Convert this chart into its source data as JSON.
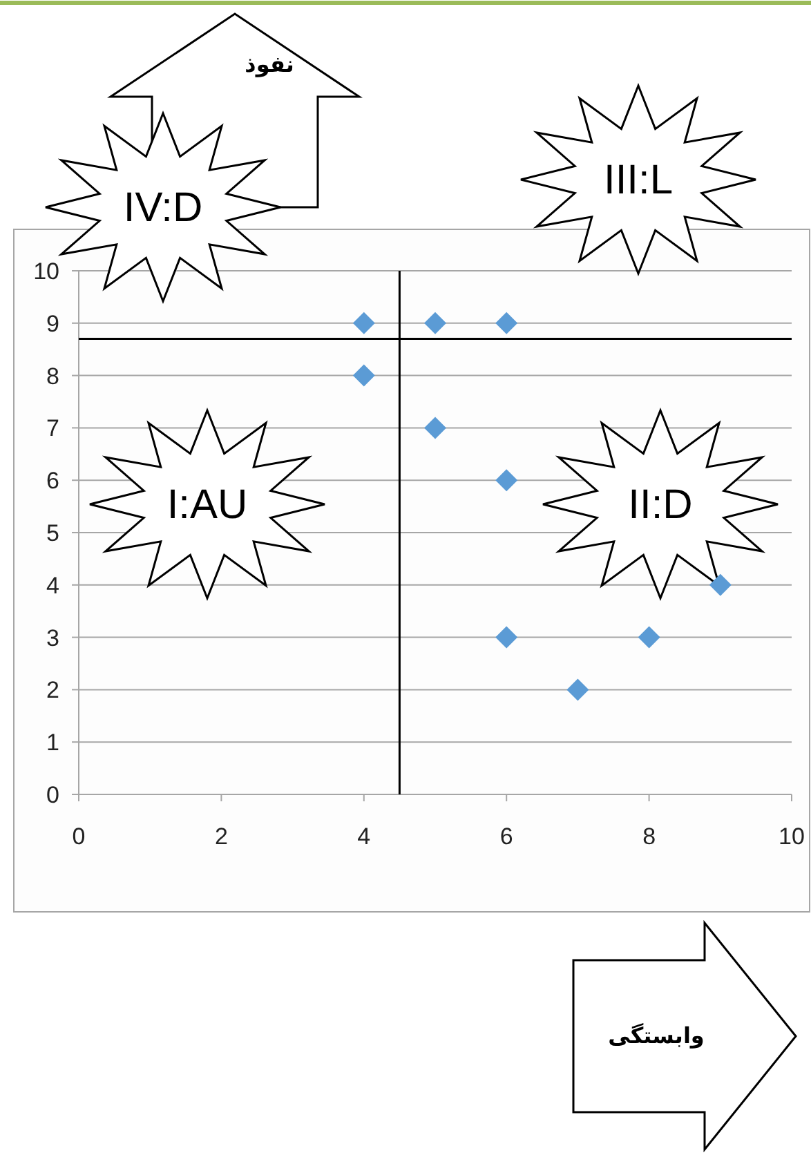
{
  "chart_data": {
    "type": "scatter",
    "x": [
      4,
      5,
      6,
      4,
      5,
      6,
      9,
      6,
      8,
      7
    ],
    "series": [
      {
        "color": "#5b9bd5",
        "values": [
          9,
          9,
          9,
          8,
          7,
          6,
          4,
          3,
          3,
          2
        ]
      }
    ],
    "xlim": [
      0,
      10
    ],
    "ylim": [
      0,
      10
    ],
    "xticks": [
      0,
      2,
      4,
      6,
      8,
      10
    ],
    "yticks": [
      0,
      1,
      2,
      3,
      4,
      5,
      6,
      7,
      8,
      9,
      10
    ],
    "grid": "y",
    "marker": "diamond",
    "ref_lines": [
      {
        "axis": "x",
        "value": 4.5,
        "color": "#000000"
      },
      {
        "axis": "y",
        "value": 8.7,
        "color": "#000000"
      }
    ],
    "annotations": [
      "IV:D",
      "III:L",
      "I:AU",
      "II:D",
      "نفوذ",
      "وابستگی"
    ]
  }
}
